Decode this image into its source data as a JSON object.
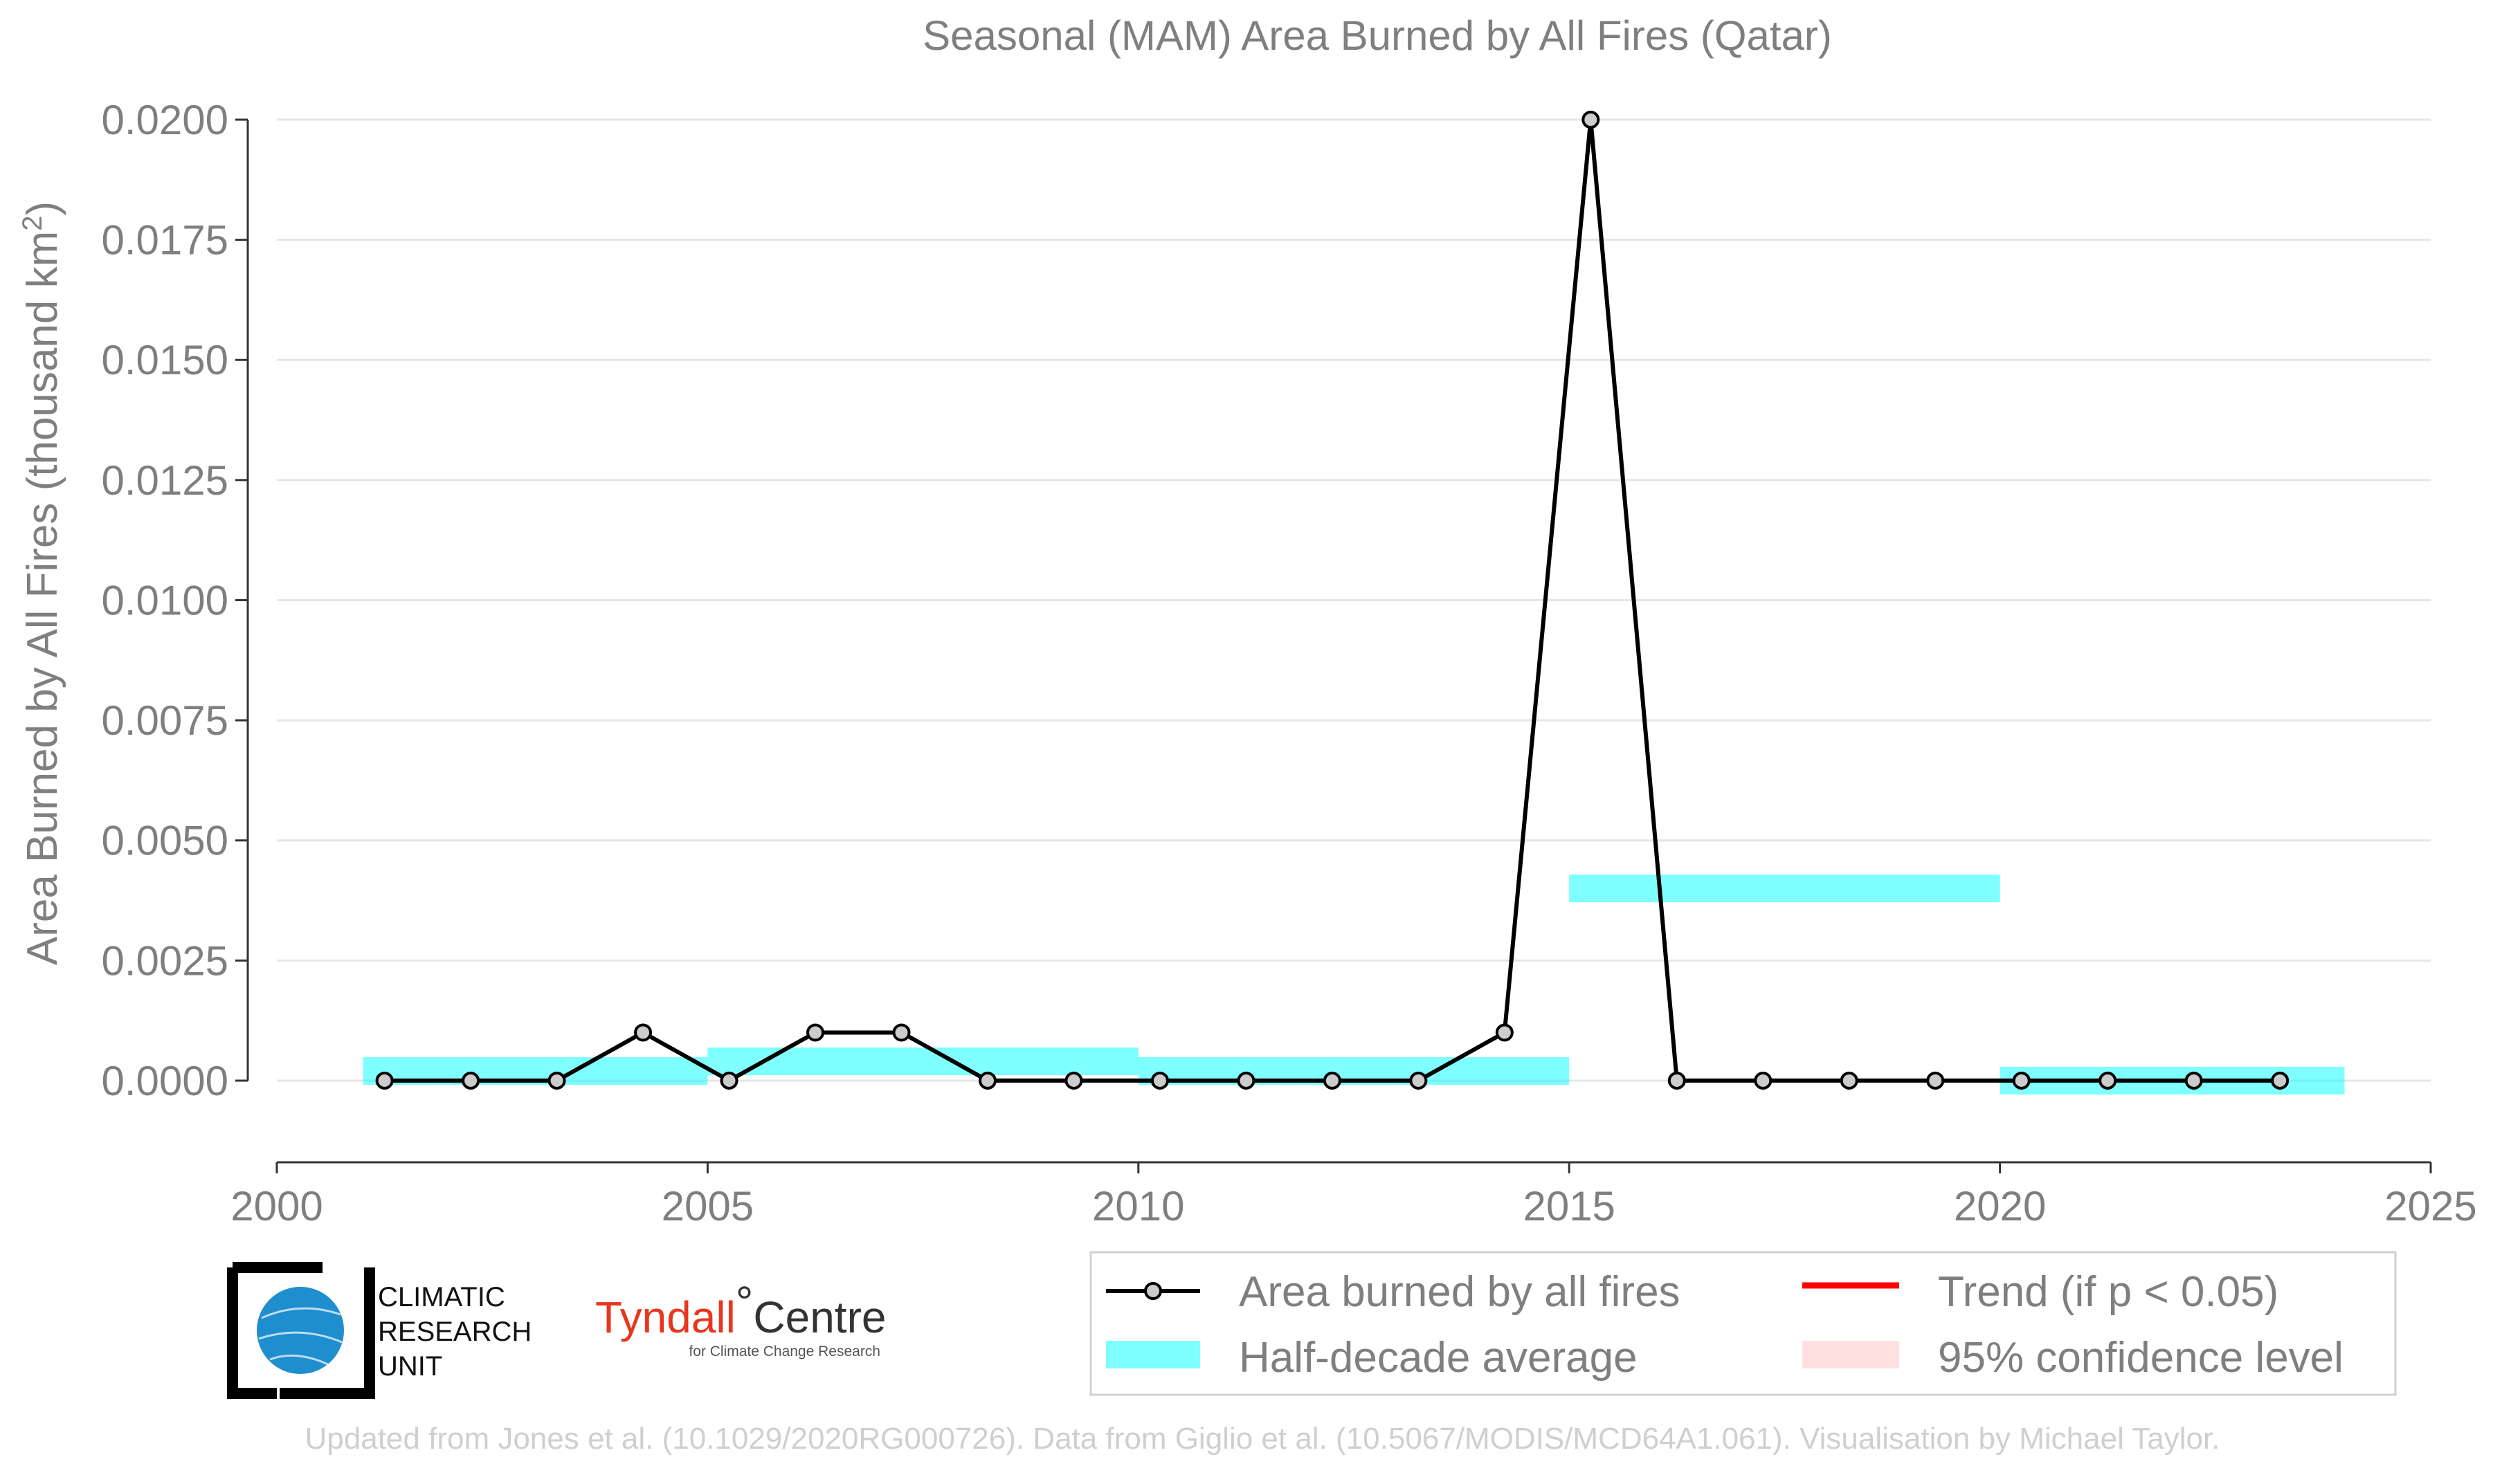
{
  "chart_data": {
    "type": "line",
    "title": "Seasonal (MAM) Area Burned by All Fires (Qatar)",
    "xlabel": "",
    "ylabel": "Area Burned by All Fires (thousand km",
    "ylabel_sup": "2",
    "ylabel_end": ")",
    "xlim": [
      2000,
      2025
    ],
    "ylim": [
      -0.0017,
      0.02
    ],
    "x_ticks": [
      "2000",
      "2005",
      "2010",
      "2015",
      "2020",
      "2025"
    ],
    "y_ticks": [
      "0.0000",
      "0.0025",
      "0.0050",
      "0.0075",
      "0.0100",
      "0.0125",
      "0.0150",
      "0.0175",
      "0.0200"
    ],
    "grid": true,
    "series": [
      {
        "name": "Area burned by all fires",
        "color": "#000000",
        "x": [
          2001.25,
          2002.25,
          2003.25,
          2004.25,
          2005.25,
          2006.25,
          2007.25,
          2008.25,
          2009.25,
          2010.25,
          2011.25,
          2012.25,
          2013.25,
          2014.25,
          2015.25,
          2016.25,
          2017.25,
          2018.25,
          2019.25,
          2020.25,
          2021.25,
          2022.25,
          2023.25
        ],
        "y": [
          0,
          0,
          0,
          0.001,
          0,
          0.001,
          0.001,
          0,
          0,
          0,
          0,
          0,
          0,
          0.001,
          0.02,
          0,
          0,
          0,
          0,
          0,
          0,
          0,
          0
        ]
      }
    ],
    "half_decade_average": {
      "name": "Half-decade average",
      "color": "#00ffff",
      "segments": [
        {
          "x0": 2001,
          "x1": 2005,
          "value": 0.0002
        },
        {
          "x0": 2005,
          "x1": 2010,
          "value": 0.0004
        },
        {
          "x0": 2010,
          "x1": 2015,
          "value": 0.0002
        },
        {
          "x0": 2015,
          "x1": 2020,
          "value": 0.004
        },
        {
          "x0": 2020,
          "x1": 2024,
          "value": 0.0
        }
      ]
    },
    "legend": {
      "position": "bottom-right",
      "items": [
        {
          "label": "Area burned by all fires",
          "kind": "line-marker",
          "color": "#000000"
        },
        {
          "label": "Trend (if p < 0.05)",
          "kind": "line",
          "color": "#ff0000"
        },
        {
          "label": "Half-decade average",
          "kind": "patch",
          "color": "#00ffff"
        },
        {
          "label": "95% confidence level",
          "kind": "patch",
          "color": "#ffcccc"
        }
      ]
    }
  },
  "logos": {
    "cru": [
      "CLIMATIC",
      "RESEARCH",
      "UNIT"
    ],
    "tyndall_main": "Tyndall",
    "tyndall_degree": "°",
    "tyndall_centre": "Centre",
    "tyndall_sub": "for Climate Change Research"
  },
  "credit": "Updated from Jones et al. (10.1029/2020RG000726). Data from Giglio et al. (10.5067/MODIS/MCD64A1.061). Visualisation by Michael Taylor."
}
